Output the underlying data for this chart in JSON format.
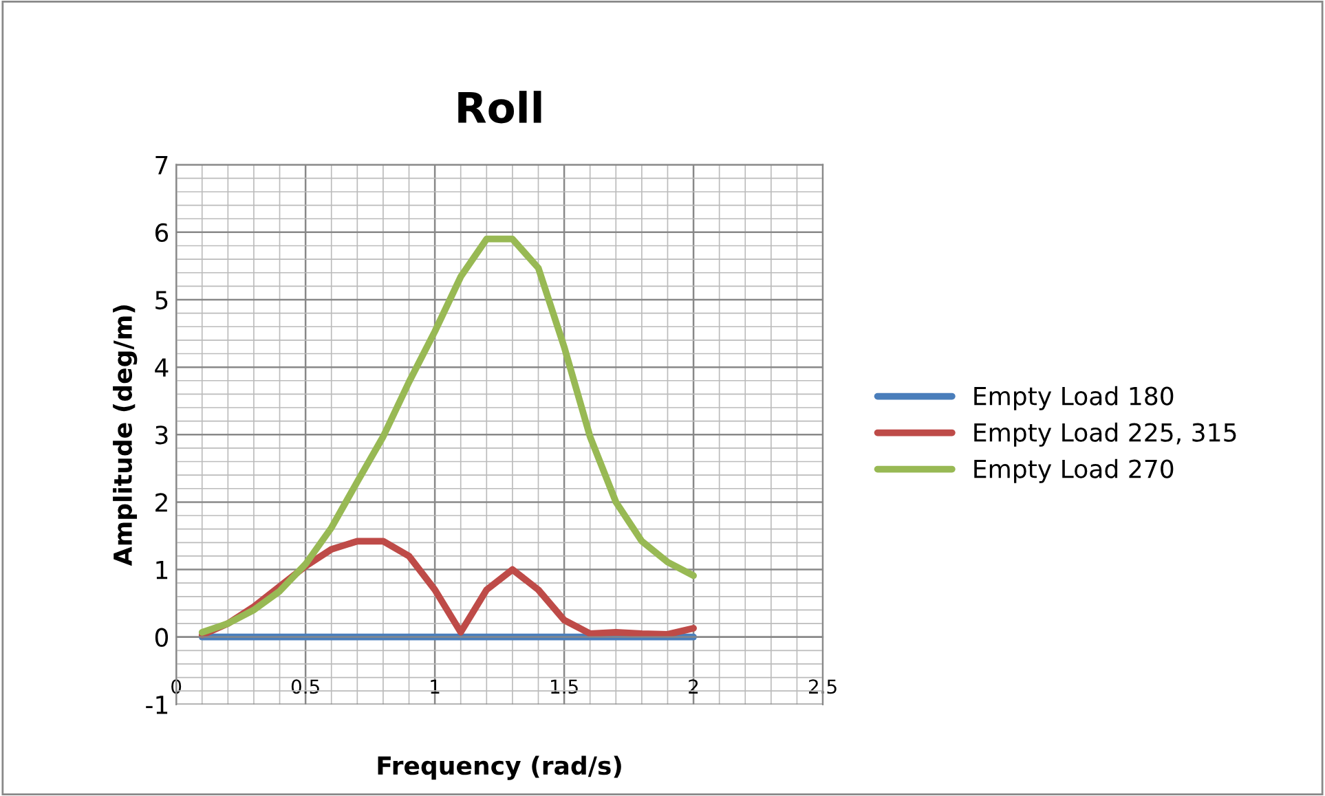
{
  "chart_data": {
    "type": "line",
    "title": "Roll",
    "xlabel": "Frequency (rad/s)",
    "ylabel": "Amplitude (deg/m)",
    "x": [
      0.1,
      0.2,
      0.3,
      0.4,
      0.5,
      0.6,
      0.7,
      0.8,
      0.9,
      1.0,
      1.1,
      1.2,
      1.3,
      1.4,
      1.5,
      1.6,
      1.7,
      1.8,
      1.9,
      2.0
    ],
    "series": [
      {
        "name": "Empty Load 180",
        "color": "#4a7ebb",
        "values": [
          0,
          0,
          0,
          0,
          0,
          0,
          0,
          0,
          0,
          0,
          0,
          0,
          0,
          0,
          0,
          0,
          0,
          0,
          0,
          0
        ]
      },
      {
        "name": "Empty Load 225, 315",
        "color": "#be4b48",
        "values": [
          0.03,
          0.2,
          0.45,
          0.75,
          1.05,
          1.3,
          1.42,
          1.42,
          1.2,
          0.7,
          0.07,
          0.7,
          1.0,
          0.7,
          0.25,
          0.05,
          0.07,
          0.05,
          0.04,
          0.13
        ]
      },
      {
        "name": "Empty Load 270",
        "color": "#98b954",
        "values": [
          0.07,
          0.2,
          0.4,
          0.68,
          1.08,
          1.62,
          2.3,
          2.97,
          3.78,
          4.53,
          5.34,
          5.9,
          5.9,
          5.47,
          4.3,
          2.97,
          2.0,
          1.42,
          1.11,
          0.91
        ]
      }
    ],
    "xlim": [
      0,
      2.5
    ],
    "xticks": [
      0,
      0.5,
      1,
      1.5,
      2,
      2.5
    ],
    "ylim": [
      -1,
      7
    ],
    "yticks": [
      -1,
      0,
      1,
      2,
      3,
      4,
      5,
      6,
      7
    ],
    "grid": true,
    "legend": "right",
    "marker": "none",
    "line_style": "solid"
  }
}
